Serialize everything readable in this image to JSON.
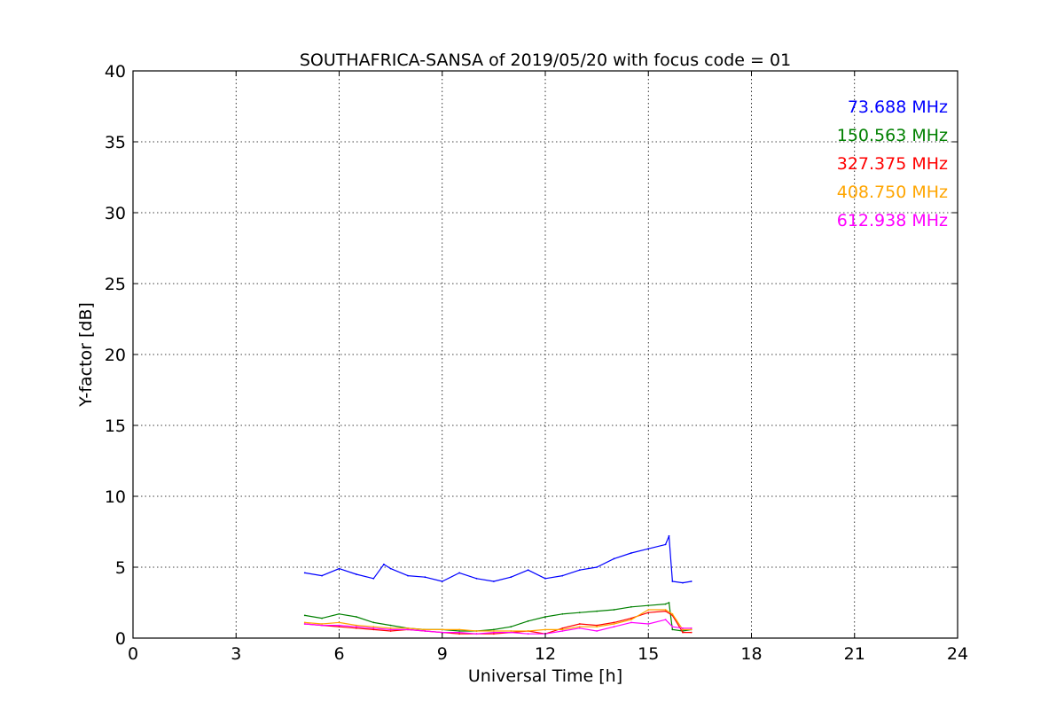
{
  "chart_data": {
    "type": "line",
    "title": "SOUTHAFRICA-SANSA of 2019/05/20 with focus code = 01",
    "xlabel": "Universal Time [h]",
    "ylabel": "Y-factor [dB]",
    "xlim": [
      0,
      24
    ],
    "ylim": [
      0,
      40
    ],
    "xticks": [
      0,
      3,
      6,
      9,
      12,
      15,
      18,
      21,
      24
    ],
    "yticks": [
      0,
      5,
      10,
      15,
      20,
      25,
      30,
      35,
      40
    ],
    "grid": true,
    "legend_placement": "top-right",
    "series": [
      {
        "name": "73.688 MHz",
        "color": "#0000ff",
        "x": [
          5.0,
          5.5,
          6.0,
          6.5,
          7.0,
          7.3,
          7.5,
          8.0,
          8.5,
          9.0,
          9.5,
          10.0,
          10.5,
          11.0,
          11.5,
          12.0,
          12.5,
          13.0,
          13.5,
          14.0,
          14.5,
          15.0,
          15.5,
          15.6,
          15.7,
          16.0,
          16.25
        ],
        "y": [
          4.6,
          4.4,
          4.9,
          4.5,
          4.2,
          5.2,
          4.9,
          4.4,
          4.3,
          4.0,
          4.6,
          4.2,
          4.0,
          4.3,
          4.8,
          4.2,
          4.4,
          4.8,
          5.0,
          5.6,
          6.0,
          6.3,
          6.6,
          7.2,
          4.0,
          3.9,
          4.0
        ]
      },
      {
        "name": "150.563 MHz",
        "color": "#008000",
        "x": [
          5.0,
          5.5,
          6.0,
          6.5,
          7.0,
          7.5,
          8.0,
          8.5,
          9.0,
          9.5,
          10.0,
          10.5,
          11.0,
          11.5,
          12.0,
          12.5,
          13.0,
          13.5,
          14.0,
          14.5,
          15.0,
          15.5,
          15.6,
          15.7,
          16.0,
          16.25
        ],
        "y": [
          1.6,
          1.4,
          1.7,
          1.5,
          1.1,
          0.9,
          0.7,
          0.6,
          0.6,
          0.5,
          0.5,
          0.6,
          0.8,
          1.2,
          1.5,
          1.7,
          1.8,
          1.9,
          2.0,
          2.2,
          2.3,
          2.4,
          2.5,
          0.6,
          0.5,
          0.6
        ]
      },
      {
        "name": "327.375 MHz",
        "color": "#ff0000",
        "x": [
          5.0,
          5.5,
          6.0,
          6.5,
          7.0,
          7.5,
          8.0,
          8.5,
          9.0,
          9.5,
          10.0,
          10.5,
          11.0,
          11.5,
          12.0,
          12.5,
          13.0,
          13.5,
          14.0,
          14.5,
          15.0,
          15.5,
          15.7,
          16.0,
          16.25
        ],
        "y": [
          1.0,
          0.9,
          0.8,
          0.7,
          0.6,
          0.5,
          0.6,
          0.5,
          0.4,
          0.3,
          0.3,
          0.3,
          0.4,
          0.5,
          0.3,
          0.7,
          1.0,
          0.9,
          1.1,
          1.4,
          1.8,
          1.9,
          1.6,
          0.4,
          0.4
        ]
      },
      {
        "name": "408.750 MHz",
        "color": "#ffa500",
        "x": [
          5.0,
          5.5,
          6.0,
          6.5,
          7.0,
          7.5,
          8.0,
          8.5,
          9.0,
          9.5,
          10.0,
          10.5,
          11.0,
          11.5,
          12.0,
          12.5,
          13.0,
          13.5,
          14.0,
          14.5,
          15.0,
          15.5,
          15.7,
          16.0,
          16.25
        ],
        "y": [
          1.1,
          1.0,
          1.1,
          0.9,
          0.8,
          0.7,
          0.7,
          0.6,
          0.6,
          0.6,
          0.5,
          0.5,
          0.5,
          0.5,
          0.6,
          0.6,
          0.8,
          0.8,
          1.0,
          1.3,
          2.0,
          2.0,
          1.7,
          0.6,
          0.6
        ]
      },
      {
        "name": "612.938 MHz",
        "color": "#ff00ff",
        "x": [
          5.0,
          5.5,
          6.0,
          6.5,
          7.0,
          7.5,
          8.0,
          8.5,
          9.0,
          9.5,
          10.0,
          10.5,
          11.0,
          11.5,
          12.0,
          12.5,
          13.0,
          13.5,
          14.0,
          14.5,
          15.0,
          15.5,
          15.7,
          16.0,
          16.25
        ],
        "y": [
          1.0,
          0.9,
          0.9,
          0.8,
          0.7,
          0.6,
          0.6,
          0.5,
          0.4,
          0.4,
          0.3,
          0.4,
          0.4,
          0.3,
          0.3,
          0.5,
          0.7,
          0.5,
          0.8,
          1.1,
          1.0,
          1.3,
          0.8,
          0.7,
          0.7
        ]
      }
    ]
  }
}
